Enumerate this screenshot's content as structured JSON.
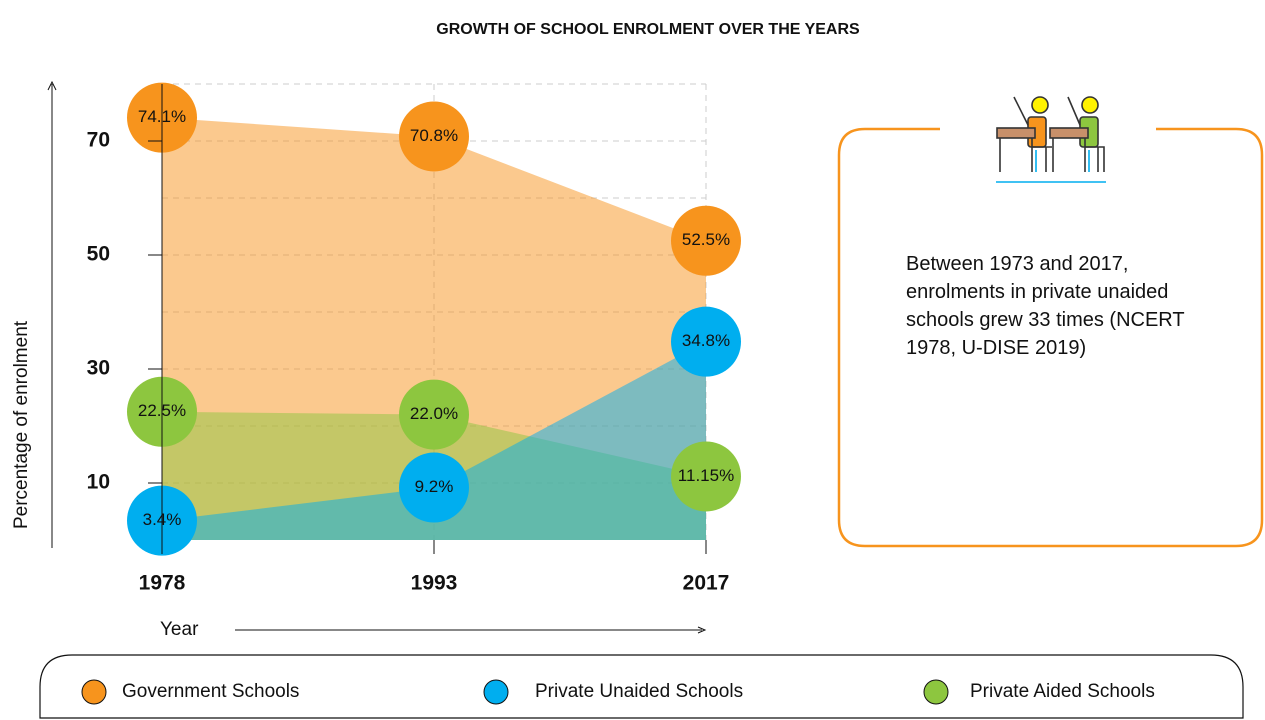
{
  "chart_data": {
    "type": "area",
    "title": "GROWTH OF SCHOOL ENROLMENT OVER THE YEARS",
    "x_label": "Year",
    "y_label": "Percentage of enrolment",
    "categories": [
      "1978",
      "1993",
      "2017"
    ],
    "series": [
      {
        "name": "Government Schools",
        "color": "#f7941d",
        "values": [
          74.1,
          70.8,
          52.5
        ],
        "value_labels": [
          "74.1%",
          "70.8%",
          "52.5%"
        ]
      },
      {
        "name": "Private Unaided Schools",
        "color": "#00aeef",
        "values": [
          3.4,
          9.2,
          34.8
        ],
        "value_labels": [
          "3.4%",
          "9.2%",
          "34.8%"
        ]
      },
      {
        "name": "Private Aided Schools",
        "color": "#8dc63f",
        "values": [
          22.5,
          22.0,
          11.15
        ],
        "value_labels": [
          "22.5%",
          "22.0%",
          "11.15%"
        ]
      }
    ],
    "ylim": [
      0,
      80
    ],
    "yticks": [
      10,
      30,
      50,
      70
    ],
    "minor_yticks": [
      20,
      40,
      60,
      80
    ],
    "grid": true,
    "legend": "bottom",
    "annotation": "Between 1973 and 2017, enrolments in private unaided schools grew 33 times (NCERT 1978, U-DISE 2019)"
  }
}
